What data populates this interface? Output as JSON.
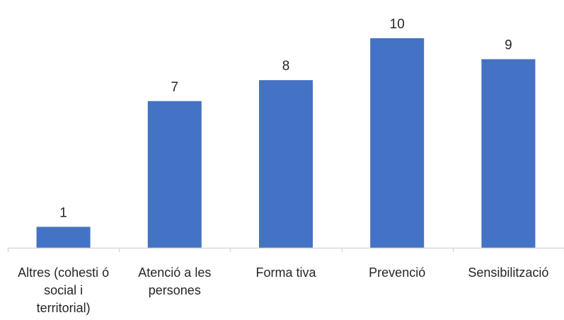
{
  "chart_data": {
    "type": "bar",
    "categories": [
      [
        "Altres (cohesti ó",
        "social  i",
        "territorial)"
      ],
      [
        "Atenció a les",
        "persones"
      ],
      [
        "Forma tiva"
      ],
      [
        "Prevenció"
      ],
      [
        "Sensibilització"
      ]
    ],
    "values": [
      1,
      7,
      8,
      10,
      9
    ],
    "data_labels": [
      "1",
      "7",
      "8",
      "10",
      "9"
    ],
    "title": "",
    "xlabel": "",
    "ylabel": "",
    "ylim": [
      0,
      11
    ],
    "grid": false,
    "legend": "none",
    "bar_color": "#4472C4",
    "axis_color": "#D9D9D9"
  }
}
